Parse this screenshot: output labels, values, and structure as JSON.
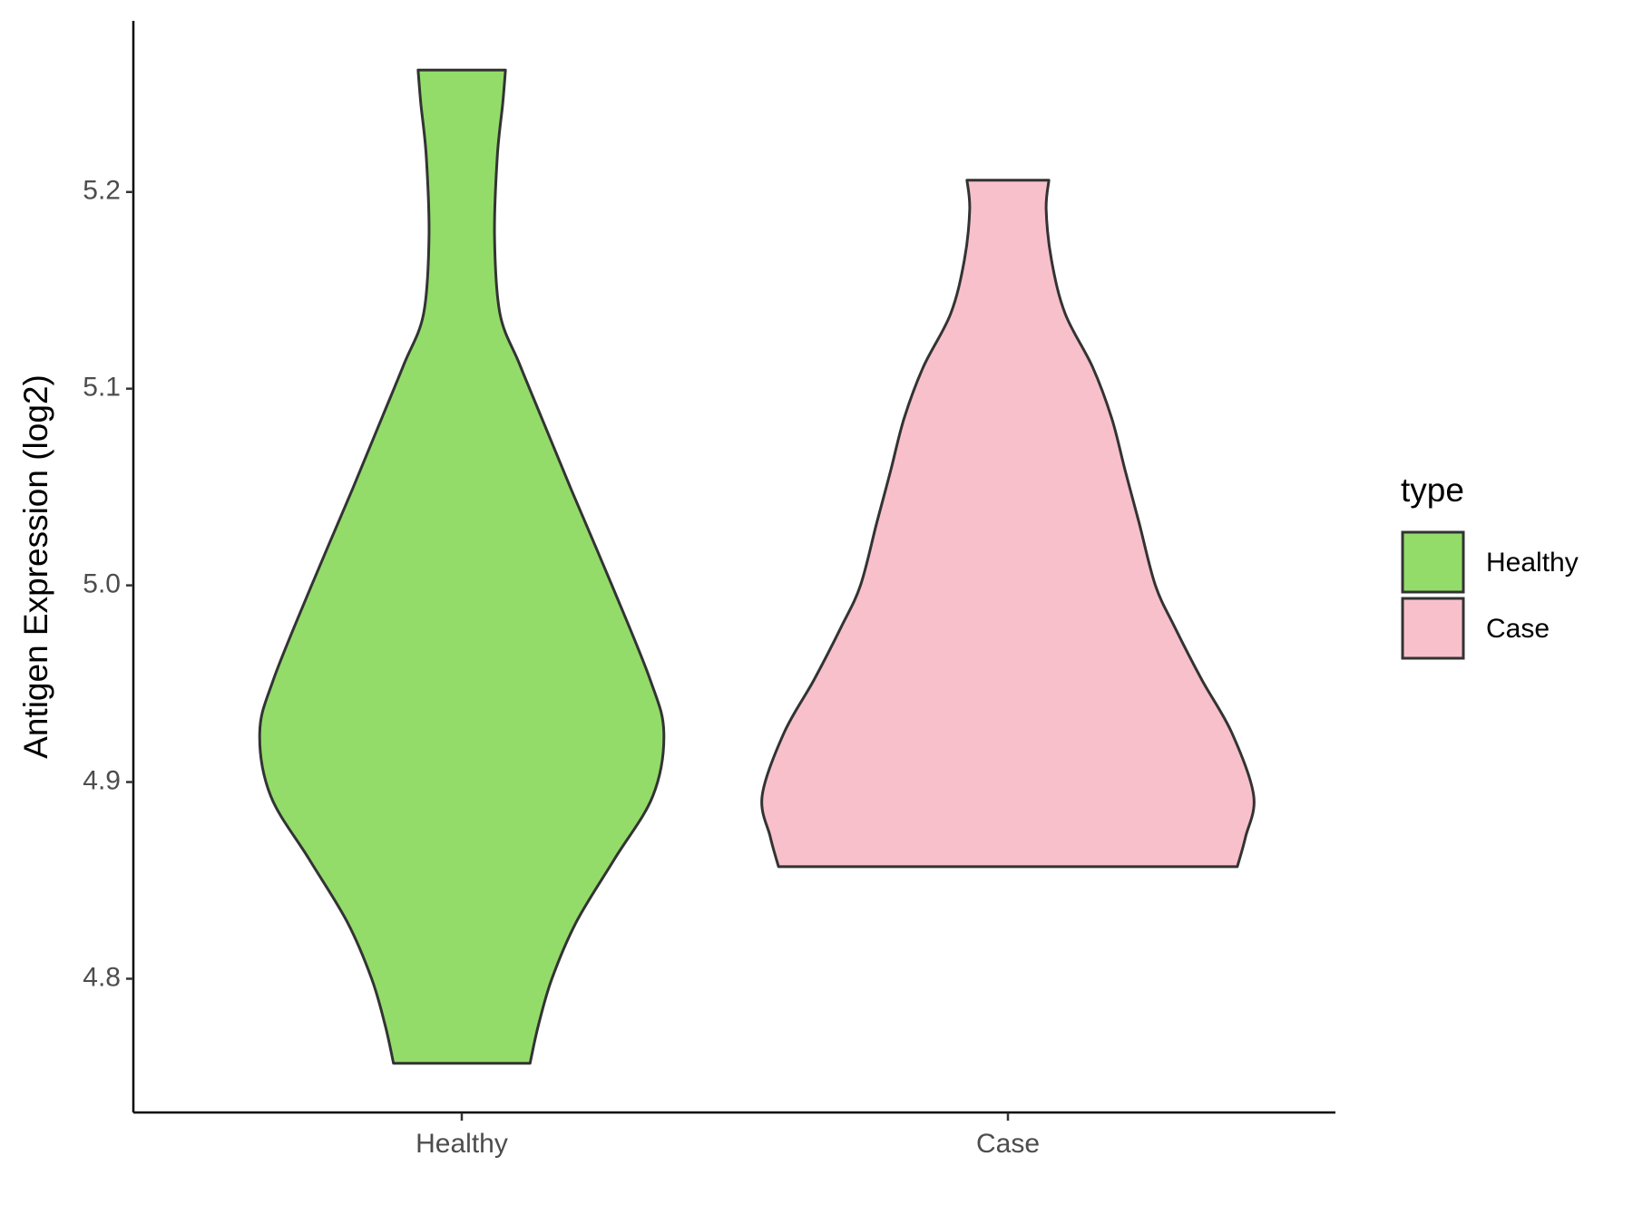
{
  "chart_data": {
    "type": "violin",
    "ylabel": "Antigen Expression (log2)",
    "legend_title": "type",
    "categories": [
      "Healthy",
      "Case"
    ],
    "ylim": [
      4.732,
      5.287
    ],
    "yticks": [
      {
        "value": 4.8,
        "label": "4.8"
      },
      {
        "value": 4.9,
        "label": "4.9"
      },
      {
        "value": 5.0,
        "label": "5.0"
      },
      {
        "value": 5.1,
        "label": "5.1"
      },
      {
        "value": 5.2,
        "label": "5.2"
      }
    ],
    "legend_position": "right",
    "grid": false,
    "series": [
      {
        "name": "Healthy",
        "color": "#93dc6a",
        "y": [
          5.262,
          5.245,
          5.218,
          5.177,
          5.138,
          5.113,
          5.086,
          5.049,
          5.0,
          4.952,
          4.925,
          4.893,
          4.861,
          4.829,
          4.8,
          4.776,
          4.757
        ],
        "width": [
          0.16,
          0.15,
          0.13,
          0.12,
          0.14,
          0.21,
          0.29,
          0.4,
          0.55,
          0.69,
          0.74,
          0.7,
          0.56,
          0.42,
          0.33,
          0.28,
          0.25
        ]
      },
      {
        "name": "Case",
        "color": "#f8c0cb",
        "y": [
          5.206,
          5.191,
          5.165,
          5.138,
          5.111,
          5.085,
          5.058,
          5.032,
          5.0,
          4.979,
          4.952,
          4.925,
          4.893,
          4.872,
          4.857
        ],
        "width": [
          0.15,
          0.14,
          0.16,
          0.21,
          0.31,
          0.38,
          0.43,
          0.48,
          0.54,
          0.61,
          0.71,
          0.82,
          0.9,
          0.87,
          0.84
        ]
      }
    ]
  }
}
